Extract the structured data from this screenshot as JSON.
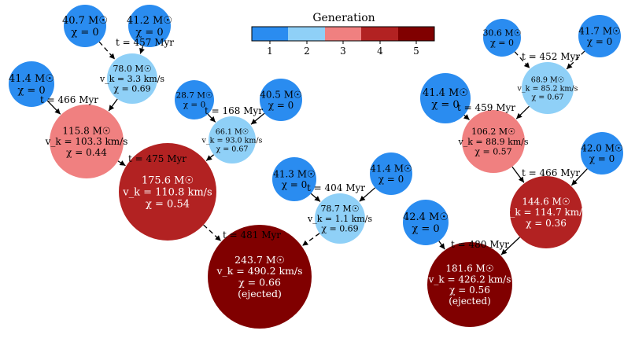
{
  "legend": {
    "title": "Generation",
    "ticks": [
      "1",
      "2",
      "3",
      "4",
      "5"
    ],
    "colors": [
      "#2a8cf0",
      "#8fd0f7",
      "#f08080",
      "#b22222",
      "#800000"
    ]
  },
  "trees": [
    {
      "nodes": [
        {
          "id": "a1",
          "gen": 1,
          "lines": [
            "40.7 M☉",
            "χ = 0"
          ]
        },
        {
          "id": "a2",
          "gen": 1,
          "lines": [
            "41.2 M☉",
            "χ = 0"
          ]
        },
        {
          "id": "a3",
          "gen": 2,
          "lines": [
            "78.0 M☉",
            "v_k = 3.3 km/s",
            "χ = 0.69"
          ]
        },
        {
          "id": "a4",
          "gen": 1,
          "lines": [
            "41.4 M☉",
            "χ = 0"
          ]
        },
        {
          "id": "a5",
          "gen": 3,
          "lines": [
            "115.8 M☉",
            "v_k = 103.3 km/s",
            "χ = 0.44"
          ]
        },
        {
          "id": "a6",
          "gen": 1,
          "lines": [
            "28.7 M☉",
            "χ = 0"
          ]
        },
        {
          "id": "a7",
          "gen": 1,
          "lines": [
            "40.5 M☉",
            "χ = 0"
          ]
        },
        {
          "id": "a8",
          "gen": 2,
          "lines": [
            "66.1 M☉",
            "v_k = 93.0 km/s",
            "χ = 0.67"
          ]
        },
        {
          "id": "a9",
          "gen": 4,
          "lines": [
            "175.6 M☉",
            "v_k = 110.8 km/s",
            "χ = 0.54"
          ]
        },
        {
          "id": "a10",
          "gen": 1,
          "lines": [
            "41.3 M☉",
            "χ = 0"
          ]
        },
        {
          "id": "a11",
          "gen": 1,
          "lines": [
            "41.4 M☉",
            "χ = 0"
          ]
        },
        {
          "id": "a12",
          "gen": 2,
          "lines": [
            "78.7 M☉",
            "v_k = 1.1 km/s",
            "χ = 0.69"
          ]
        },
        {
          "id": "a13",
          "gen": 5,
          "lines": [
            "243.7 M☉",
            "v_k = 490.2 km/s",
            "χ = 0.66",
            "(ejected)"
          ]
        }
      ],
      "times": [
        {
          "id": "ta3",
          "text": "t = 457 Myr"
        },
        {
          "id": "ta5",
          "text": "t = 466 Myr"
        },
        {
          "id": "ta8",
          "text": "t = 168 Myr"
        },
        {
          "id": "ta9",
          "text": "t = 475 Myr"
        },
        {
          "id": "ta12",
          "text": "t = 404 Myr"
        },
        {
          "id": "ta13",
          "text": "t = 481 Myr"
        }
      ]
    },
    {
      "nodes": [
        {
          "id": "b1",
          "gen": 1,
          "lines": [
            "30.6 M☉",
            "χ = 0"
          ]
        },
        {
          "id": "b2",
          "gen": 1,
          "lines": [
            "41.7 M☉",
            "χ = 0"
          ]
        },
        {
          "id": "b3",
          "gen": 2,
          "lines": [
            "68.9 M☉",
            "v_k = 85.2 km/s",
            "χ = 0.67"
          ]
        },
        {
          "id": "b4",
          "gen": 1,
          "lines": [
            "41.4 M☉",
            "χ = 0"
          ]
        },
        {
          "id": "b5",
          "gen": 3,
          "lines": [
            "106.2 M☉",
            "v_k = 88.9 km/s",
            "χ = 0.57"
          ]
        },
        {
          "id": "b6",
          "gen": 1,
          "lines": [
            "42.0 M☉",
            "χ = 0"
          ]
        },
        {
          "id": "b7",
          "gen": 4,
          "lines": [
            "144.6 M☉",
            "v_k = 114.7 km/s",
            "χ = 0.36"
          ]
        },
        {
          "id": "b8",
          "gen": 1,
          "lines": [
            "42.4 M☉",
            "χ = 0"
          ]
        },
        {
          "id": "b9",
          "gen": 5,
          "lines": [
            "181.6 M☉",
            "v_k = 426.2 km/s",
            "χ = 0.56",
            "(ejected)"
          ]
        }
      ],
      "times": [
        {
          "id": "tb3",
          "text": "t = 452 Myr"
        },
        {
          "id": "tb5",
          "text": "t = 459 Myr"
        },
        {
          "id": "tb7",
          "text": "t = 466 Myr"
        },
        {
          "id": "tb9",
          "text": "t = 480 Myr"
        }
      ]
    }
  ]
}
